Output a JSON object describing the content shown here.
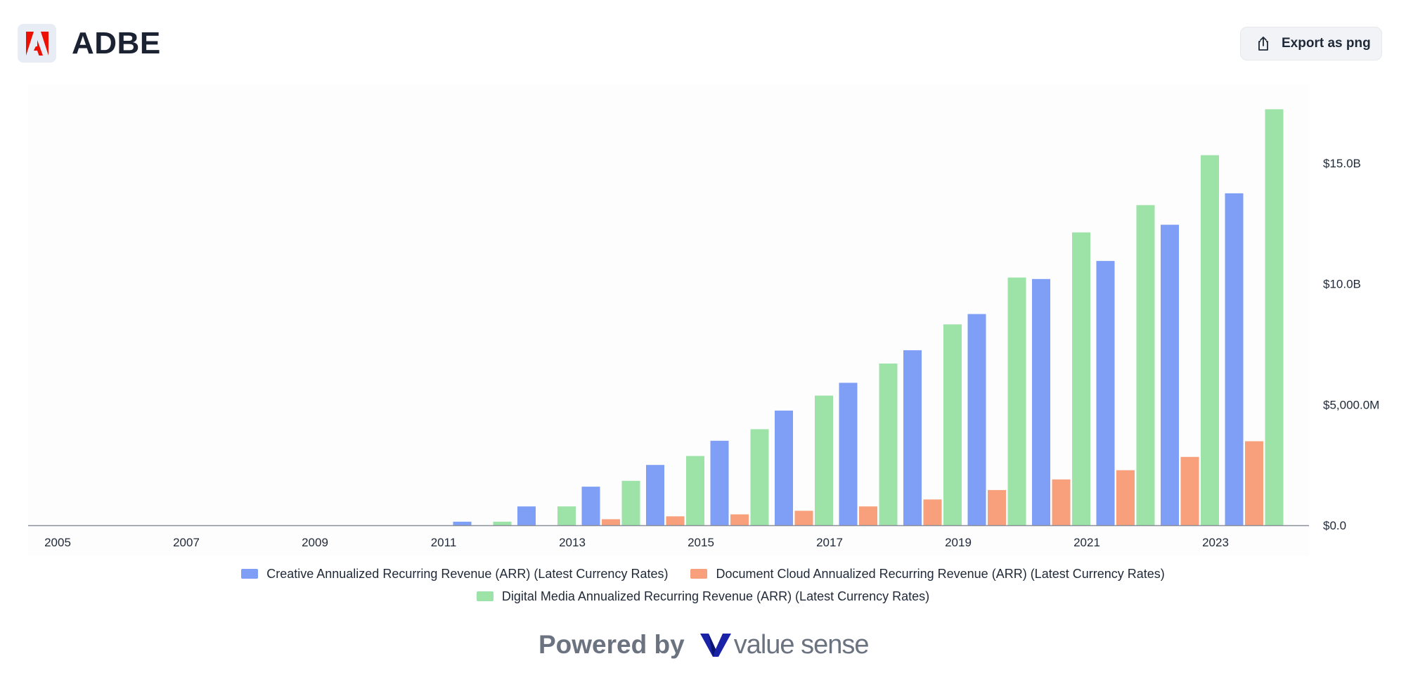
{
  "header": {
    "ticker": "ADBE",
    "logo_icon": "adobe-logo-icon",
    "export_label": "Export as png",
    "export_icon": "share-upload-icon"
  },
  "colors": {
    "creative": "#7f9ff7",
    "document_cloud": "#f89f7b",
    "digital_media": "#9de2a7",
    "axis": "#8a8f99",
    "plot_bg": "#fdfdfd",
    "logo_red": "#eb1000"
  },
  "chart_data": {
    "type": "bar",
    "title": "",
    "xlabel": "",
    "ylabel": "",
    "x_tick_labels": [
      "2005",
      "2007",
      "2009",
      "2011",
      "2013",
      "2015",
      "2017",
      "2019",
      "2021",
      "2023"
    ],
    "y_tick_values": [
      0,
      5000000000,
      10000000000,
      15000000000
    ],
    "y_tick_labels": [
      "$0.0",
      "$5,000.0M",
      "$10.0B",
      "$15.0B"
    ],
    "ylim": [
      0,
      17500000000
    ],
    "xlim": [
      2005,
      2024
    ],
    "y_axis_position": "right",
    "grid": false,
    "legend_position": "bottom",
    "series": [
      {
        "name": "Creative Annualized Recurring Revenue (ARR) (Latest Currency Rates)",
        "color_key": "creative",
        "points": [
          {
            "x": 2012,
            "y": 150000000
          },
          {
            "x": 2013,
            "y": 780000000
          },
          {
            "x": 2014,
            "y": 1600000000
          },
          {
            "x": 2015,
            "y": 2500000000
          },
          {
            "x": 2016,
            "y": 3500000000
          },
          {
            "x": 2017,
            "y": 4750000000
          },
          {
            "x": 2018,
            "y": 5900000000
          },
          {
            "x": 2019,
            "y": 7250000000
          },
          {
            "x": 2020,
            "y": 8750000000
          },
          {
            "x": 2021,
            "y": 10200000000
          },
          {
            "x": 2022,
            "y": 10950000000
          },
          {
            "x": 2023,
            "y": 12450000000
          },
          {
            "x": 2024,
            "y": 13750000000
          }
        ]
      },
      {
        "name": "Document Cloud Annualized Recurring Revenue (ARR) (Latest Currency Rates)",
        "color_key": "document_cloud",
        "points": [
          {
            "x": 2014,
            "y": 250000000
          },
          {
            "x": 2015,
            "y": 370000000
          },
          {
            "x": 2016,
            "y": 450000000
          },
          {
            "x": 2017,
            "y": 600000000
          },
          {
            "x": 2018,
            "y": 780000000
          },
          {
            "x": 2019,
            "y": 1070000000
          },
          {
            "x": 2020,
            "y": 1460000000
          },
          {
            "x": 2021,
            "y": 1900000000
          },
          {
            "x": 2022,
            "y": 2280000000
          },
          {
            "x": 2023,
            "y": 2830000000
          },
          {
            "x": 2024,
            "y": 3480000000
          }
        ]
      },
      {
        "name": "Digital Media Annualized Recurring Revenue (ARR) (Latest Currency Rates)",
        "color_key": "digital_media",
        "points": [
          {
            "x": 2012,
            "y": 150000000
          },
          {
            "x": 2013,
            "y": 780000000
          },
          {
            "x": 2014,
            "y": 1840000000
          },
          {
            "x": 2015,
            "y": 2870000000
          },
          {
            "x": 2016,
            "y": 3980000000
          },
          {
            "x": 2017,
            "y": 5370000000
          },
          {
            "x": 2018,
            "y": 6700000000
          },
          {
            "x": 2019,
            "y": 8320000000
          },
          {
            "x": 2020,
            "y": 10260000000
          },
          {
            "x": 2021,
            "y": 12130000000
          },
          {
            "x": 2022,
            "y": 13260000000
          },
          {
            "x": 2023,
            "y": 15330000000
          },
          {
            "x": 2024,
            "y": 17230000000
          }
        ]
      }
    ]
  },
  "footer": {
    "powered_by": "Powered by",
    "brand": "value sense",
    "brand_icon": "valuesense-logo-icon"
  }
}
